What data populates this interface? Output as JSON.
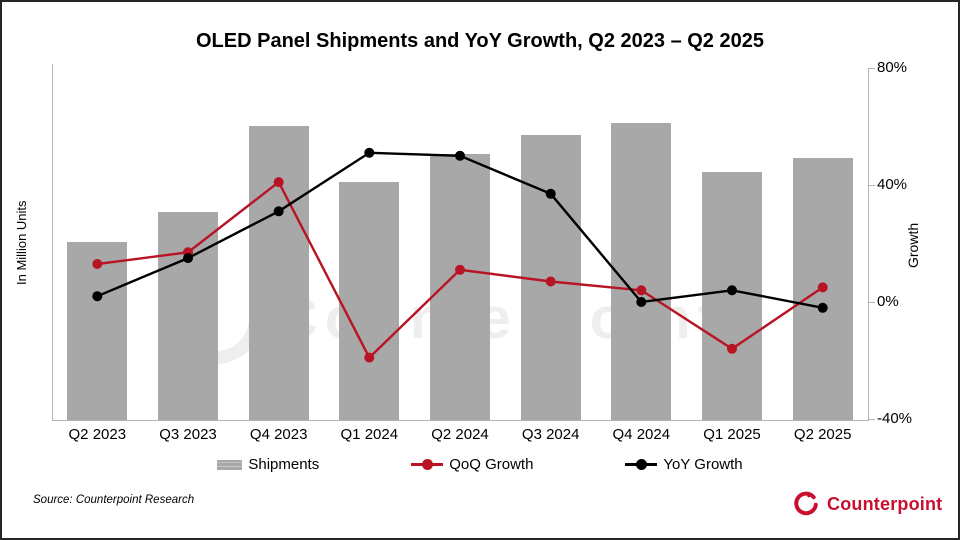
{
  "title": "OLED Panel Shipments and YoY Growth, Q2 2023 – Q2 2025",
  "axes": {
    "left_label": "In Million Units",
    "right_label": "Growth",
    "right_ticks": [
      {
        "label": "80%",
        "value": 80
      },
      {
        "label": "40%",
        "value": 40
      },
      {
        "label": "0%",
        "value": 0
      },
      {
        "label": "-40%",
        "value": -40
      }
    ]
  },
  "legend": {
    "shipments": "Shipments",
    "qoq": "QoQ Growth",
    "yoy": "YoY Growth"
  },
  "watermark": {
    "text": "Counterpoint"
  },
  "footer": {
    "source": "Source: Counterpoint Research",
    "brand": "Counterpoint"
  },
  "colors": {
    "bar": "#a8a8a8",
    "qoq_line": "#b81424",
    "yoy_line": "#000000",
    "brand_red": "#c8102e",
    "axis": "#b3b3b3"
  },
  "chart_data": {
    "type": "bar+line combo",
    "title": "OLED Panel Shipments and YoY Growth, Q2 2023 – Q2 2025",
    "categories": [
      "Q2 2023",
      "Q3 2023",
      "Q4 2023",
      "Q1 2024",
      "Q2 2024",
      "Q3 2024",
      "Q4 2024",
      "Q1 2025",
      "Q2 2025"
    ],
    "series": [
      {
        "name": "Shipments",
        "type": "bar",
        "axis": "left",
        "color": "#a8a8a8",
        "unit": "relative bar height, % of plot height (left axis shows no numeric ticks)",
        "values": [
          50.6,
          59.1,
          83.5,
          67.6,
          75.6,
          81.0,
          84.4,
          70.5,
          74.4
        ]
      },
      {
        "name": "QoQ Growth",
        "type": "line",
        "axis": "right",
        "color": "#b81424",
        "unit": "percent",
        "values": [
          13,
          17,
          41,
          -19,
          11,
          7,
          4,
          -16,
          5
        ]
      },
      {
        "name": "YoY Growth",
        "type": "line",
        "axis": "right",
        "color": "#000000",
        "unit": "percent",
        "values": [
          2,
          15,
          31,
          51,
          50,
          37,
          0,
          4,
          -2
        ]
      }
    ],
    "xlabel": "",
    "ylabel_left": "In Million Units",
    "ylabel_right": "Growth",
    "right_axis_range": [
      -40,
      80
    ],
    "right_axis_ticks_pct": [
      80,
      40,
      0,
      -40
    ],
    "grid": false,
    "legend_position": "bottom"
  }
}
